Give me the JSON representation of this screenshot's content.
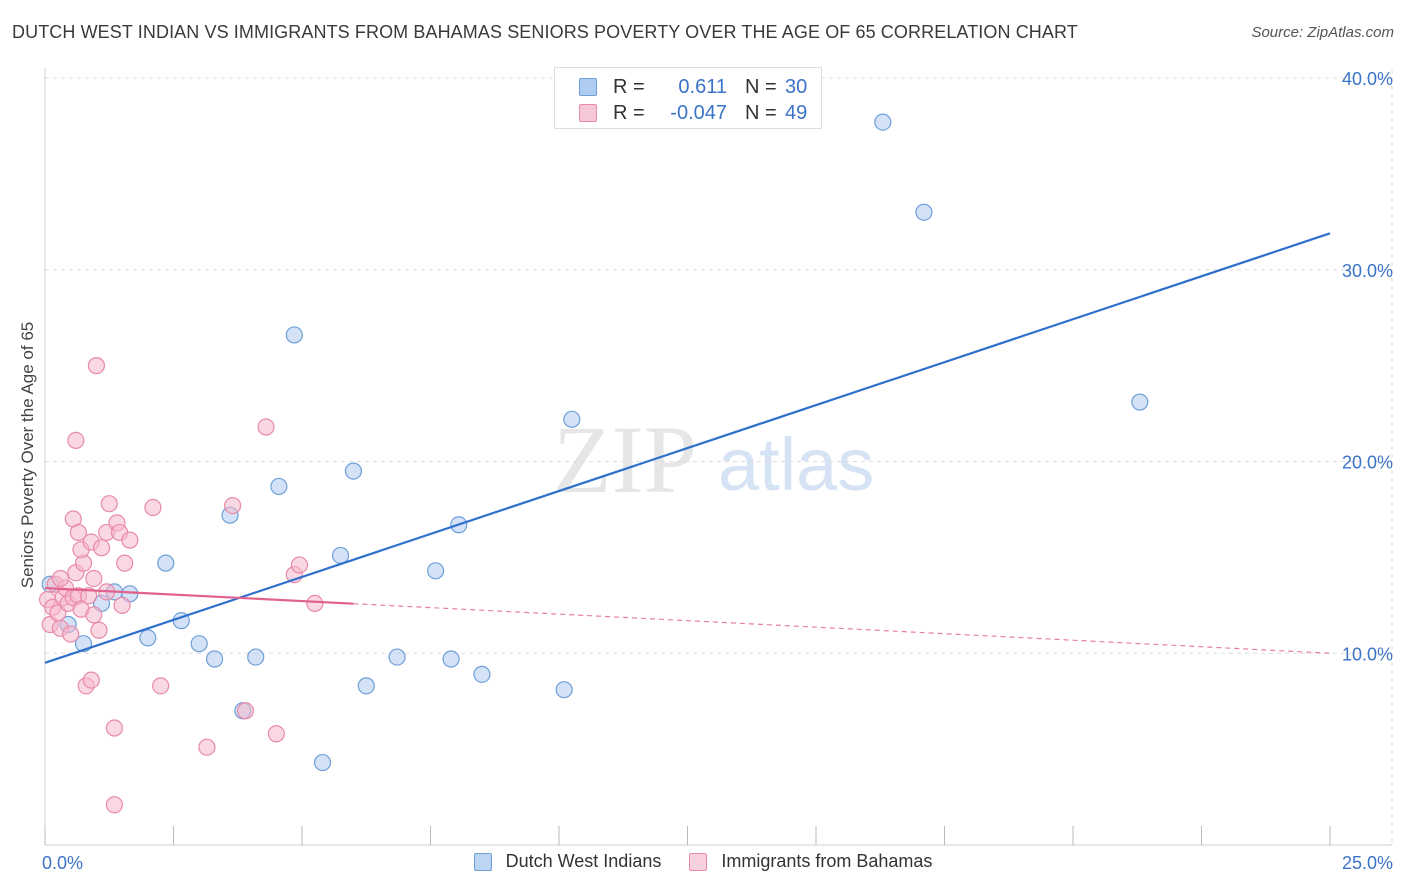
{
  "title": "DUTCH WEST INDIAN VS IMMIGRANTS FROM BAHAMAS SENIORS POVERTY OVER THE AGE OF 65 CORRELATION CHART",
  "source": "Source: ZipAtlas.com",
  "watermark": {
    "zip": "ZIP",
    "atlas": "atlas"
  },
  "legend_top": [
    {
      "r_key": "R =",
      "r_val": "0.611",
      "n_key": "N =",
      "n_val": "30"
    },
    {
      "r_key": "R =",
      "r_val": "-0.047",
      "n_key": "N =",
      "n_val": "49"
    }
  ],
  "colors": {
    "blue_fill": "#aecbf0",
    "blue_stroke": "#6f9fd8",
    "blue_line": "#2e6fcc",
    "pink_fill": "#f6b8cc",
    "pink_stroke": "#e88aa8",
    "pink_line": "#e0608e",
    "tick_label": "#3b73c8",
    "grid": "#dddddd"
  },
  "chart_data": {
    "type": "scatter",
    "title": "DUTCH WEST INDIAN VS IMMIGRANTS FROM BAHAMAS SENIORS POVERTY OVER THE AGE OF 65 CORRELATION CHART",
    "xlabel": "",
    "ylabel": "Seniors Poverty Over the Age of 65",
    "xlim": [
      0,
      25
    ],
    "ylim": [
      0,
      40
    ],
    "x_tick_labels": [
      "0.0%",
      "25.0%"
    ],
    "y_tick_labels": [
      "10.0%",
      "20.0%",
      "30.0%",
      "40.0%"
    ],
    "y_ticks": [
      10,
      20,
      30,
      40
    ],
    "legend_position": "top-center",
    "series": [
      {
        "name": "Dutch West Indians",
        "r": 0.611,
        "n": 30,
        "trend": {
          "x": [
            0,
            25
          ],
          "y": [
            9.5,
            31.9
          ],
          "solid_to": 25
        },
        "points": [
          {
            "x": 0.1,
            "y": 13.6
          },
          {
            "x": 0.45,
            "y": 11.5
          },
          {
            "x": 0.75,
            "y": 10.5
          },
          {
            "x": 1.1,
            "y": 12.6
          },
          {
            "x": 1.35,
            "y": 13.2
          },
          {
            "x": 1.65,
            "y": 13.1
          },
          {
            "x": 2.0,
            "y": 10.8
          },
          {
            "x": 2.35,
            "y": 14.7
          },
          {
            "x": 2.65,
            "y": 11.7
          },
          {
            "x": 3.0,
            "y": 10.5
          },
          {
            "x": 3.3,
            "y": 9.7
          },
          {
            "x": 3.6,
            "y": 17.2
          },
          {
            "x": 3.85,
            "y": 7.0
          },
          {
            "x": 4.1,
            "y": 9.8
          },
          {
            "x": 4.55,
            "y": 18.7
          },
          {
            "x": 4.85,
            "y": 26.6
          },
          {
            "x": 5.4,
            "y": 4.3
          },
          {
            "x": 5.75,
            "y": 15.1
          },
          {
            "x": 6.0,
            "y": 19.5
          },
          {
            "x": 6.25,
            "y": 8.3
          },
          {
            "x": 6.85,
            "y": 9.8
          },
          {
            "x": 7.6,
            "y": 14.3
          },
          {
            "x": 7.9,
            "y": 9.7
          },
          {
            "x": 8.05,
            "y": 16.7
          },
          {
            "x": 8.5,
            "y": 8.9
          },
          {
            "x": 10.1,
            "y": 8.1
          },
          {
            "x": 10.25,
            "y": 22.2
          },
          {
            "x": 16.3,
            "y": 37.7
          },
          {
            "x": 17.1,
            "y": 33.0
          },
          {
            "x": 21.3,
            "y": 23.1
          }
        ]
      },
      {
        "name": "Immigrants from Bahamas",
        "r": -0.047,
        "n": 49,
        "trend": {
          "x": [
            0,
            25
          ],
          "y": [
            13.4,
            10.0
          ],
          "solid_to": 6.0
        },
        "points": [
          {
            "x": 0.05,
            "y": 12.8
          },
          {
            "x": 0.1,
            "y": 11.5
          },
          {
            "x": 0.15,
            "y": 12.4
          },
          {
            "x": 0.2,
            "y": 13.6
          },
          {
            "x": 0.25,
            "y": 12.1
          },
          {
            "x": 0.3,
            "y": 11.3
          },
          {
            "x": 0.35,
            "y": 12.9
          },
          {
            "x": 0.4,
            "y": 13.4
          },
          {
            "x": 0.45,
            "y": 12.6
          },
          {
            "x": 0.5,
            "y": 11.0
          },
          {
            "x": 0.55,
            "y": 12.9
          },
          {
            "x": 0.6,
            "y": 14.2
          },
          {
            "x": 0.65,
            "y": 13.0
          },
          {
            "x": 0.7,
            "y": 12.3
          },
          {
            "x": 0.75,
            "y": 14.7
          },
          {
            "x": 0.55,
            "y": 17.0
          },
          {
            "x": 0.6,
            "y": 21.1
          },
          {
            "x": 0.65,
            "y": 16.3
          },
          {
            "x": 0.7,
            "y": 15.4
          },
          {
            "x": 0.8,
            "y": 8.3
          },
          {
            "x": 0.85,
            "y": 13.0
          },
          {
            "x": 0.9,
            "y": 8.6
          },
          {
            "x": 0.95,
            "y": 12.0
          },
          {
            "x": 0.9,
            "y": 15.8
          },
          {
            "x": 0.95,
            "y": 13.9
          },
          {
            "x": 1.05,
            "y": 11.2
          },
          {
            "x": 1.0,
            "y": 25.0
          },
          {
            "x": 1.1,
            "y": 15.5
          },
          {
            "x": 1.2,
            "y": 16.3
          },
          {
            "x": 1.2,
            "y": 13.2
          },
          {
            "x": 1.25,
            "y": 17.8
          },
          {
            "x": 1.35,
            "y": 6.1
          },
          {
            "x": 1.35,
            "y": 2.1
          },
          {
            "x": 1.4,
            "y": 16.8
          },
          {
            "x": 1.45,
            "y": 16.3
          },
          {
            "x": 1.5,
            "y": 12.5
          },
          {
            "x": 1.55,
            "y": 14.7
          },
          {
            "x": 1.65,
            "y": 15.9
          },
          {
            "x": 2.1,
            "y": 17.6
          },
          {
            "x": 2.25,
            "y": 8.3
          },
          {
            "x": 3.15,
            "y": 5.1
          },
          {
            "x": 3.65,
            "y": 17.7
          },
          {
            "x": 3.9,
            "y": 7.0
          },
          {
            "x": 4.3,
            "y": 21.8
          },
          {
            "x": 4.5,
            "y": 5.8
          },
          {
            "x": 4.85,
            "y": 14.1
          },
          {
            "x": 4.95,
            "y": 14.6
          },
          {
            "x": 5.25,
            "y": 12.6
          },
          {
            "x": 0.3,
            "y": 13.9
          }
        ]
      }
    ]
  }
}
